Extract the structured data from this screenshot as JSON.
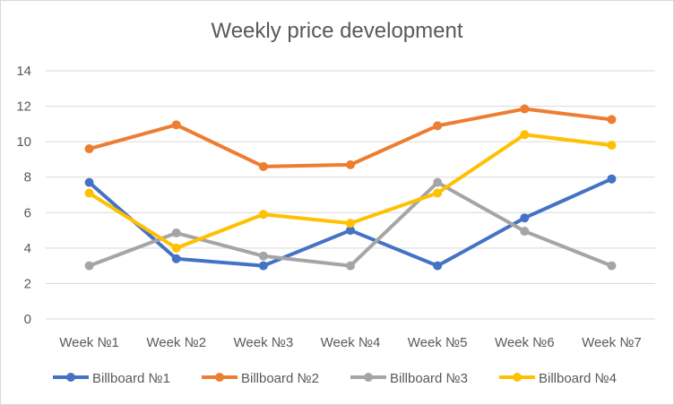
{
  "chart_data": {
    "type": "line",
    "title": "Weekly price development",
    "categories": [
      "Week №1",
      "Week №2",
      "Week №3",
      "Week №4",
      "Week №5",
      "Week №6",
      "Week №7"
    ],
    "series": [
      {
        "name": "Billboard №1",
        "color": "#4472C4",
        "values": [
          7.7,
          3.4,
          3.0,
          5.0,
          3.0,
          5.7,
          7.9
        ]
      },
      {
        "name": "Billboard №2",
        "color": "#ED7D31",
        "values": [
          9.6,
          10.95,
          8.6,
          8.7,
          10.9,
          11.85,
          11.25
        ]
      },
      {
        "name": "Billboard №3",
        "color": "#A5A5A5",
        "values": [
          3.0,
          4.85,
          3.55,
          3.0,
          7.7,
          4.95,
          3.0
        ]
      },
      {
        "name": "Billboard №4",
        "color": "#FFC000",
        "values": [
          7.1,
          4.0,
          5.9,
          5.4,
          7.1,
          10.4,
          9.8
        ]
      }
    ],
    "ylim": [
      0,
      14
    ],
    "yticks": [
      0,
      2,
      4,
      6,
      8,
      10,
      12,
      14
    ],
    "grid": true,
    "legend": "bottom"
  }
}
